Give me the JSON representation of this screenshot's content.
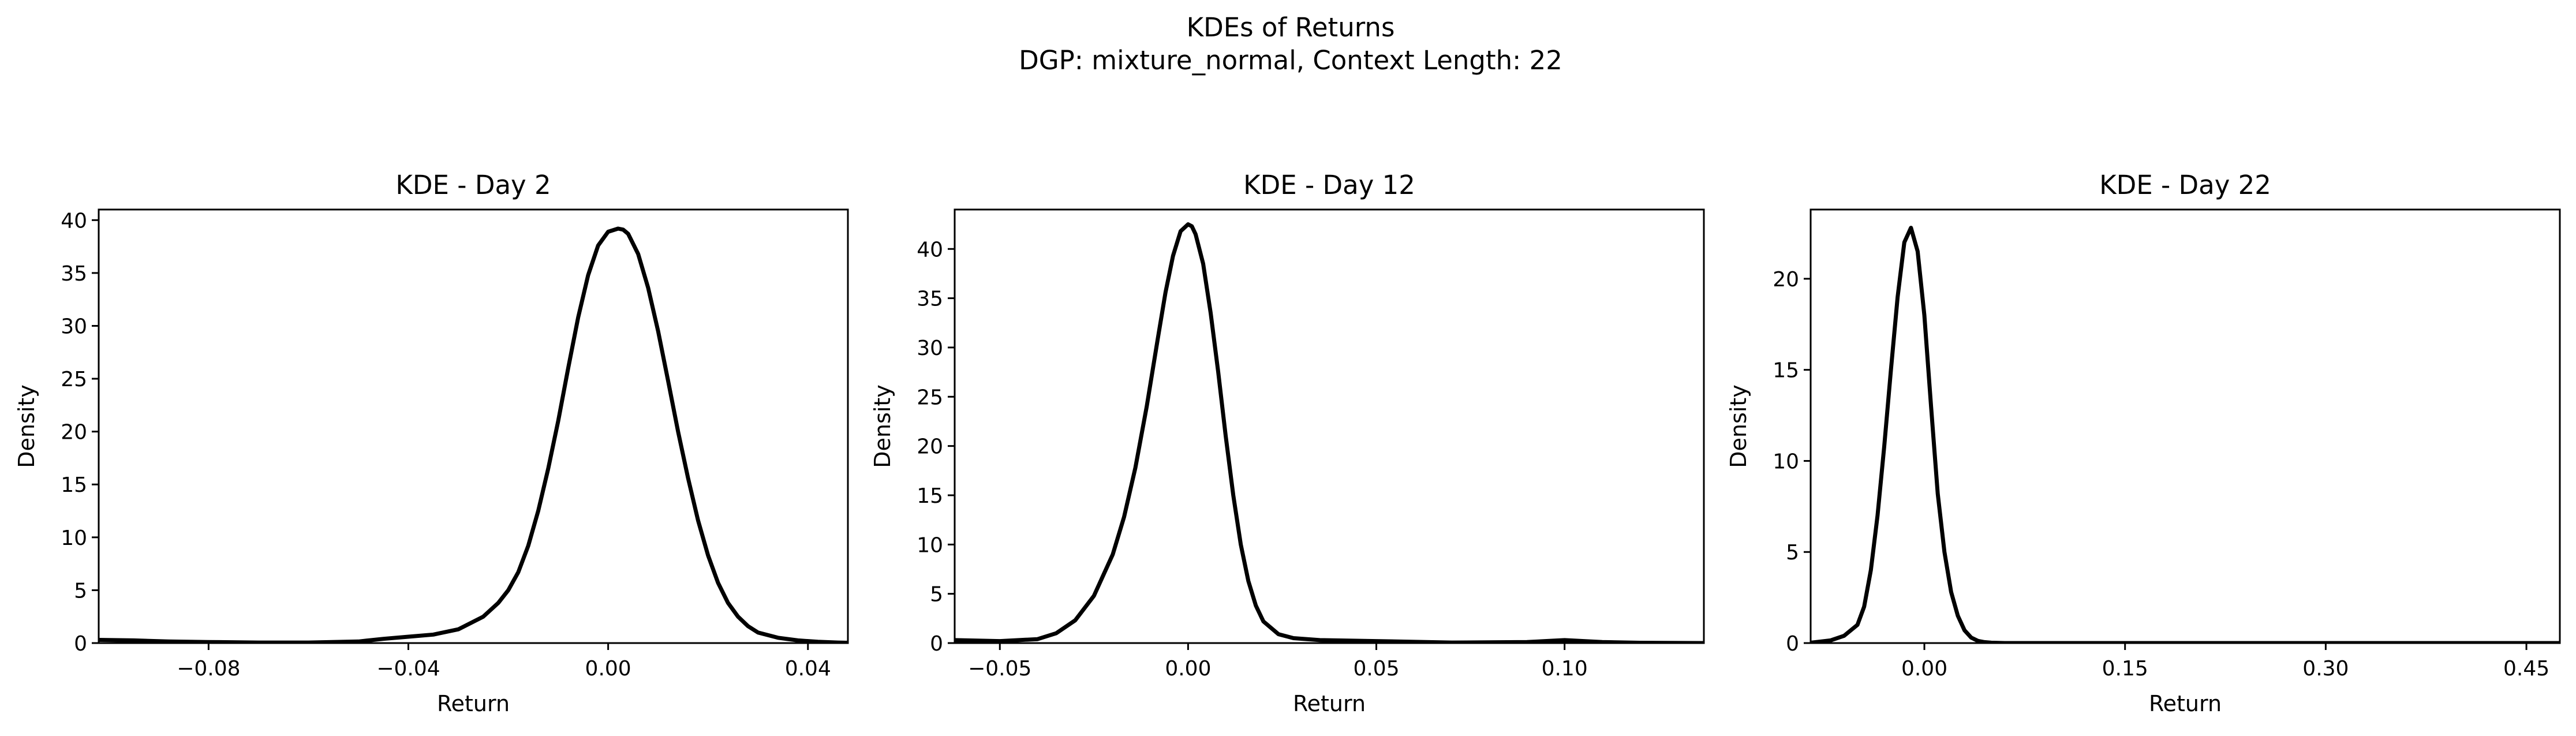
{
  "figure": {
    "title_line1": "KDEs of Returns",
    "title_line2": "DGP: mixture_normal, Context Length: 22"
  },
  "chart_data": [
    {
      "type": "line",
      "title": "KDE - Day 2",
      "xlabel": "Return",
      "ylabel": "Density",
      "xlim": [
        -0.102,
        0.048
      ],
      "ylim": [
        0,
        41
      ],
      "xticks": [
        -0.08,
        -0.04,
        0.0,
        0.04
      ],
      "xtick_labels": [
        "−0.08",
        "−0.04",
        "0.00",
        "0.04"
      ],
      "yticks": [
        0,
        5,
        10,
        15,
        20,
        25,
        30,
        35,
        40
      ],
      "ytick_labels": [
        "0",
        "5",
        "10",
        "15",
        "20",
        "25",
        "30",
        "35",
        "40"
      ],
      "grid": false,
      "series": [
        {
          "color": "#000000",
          "x": [
            -0.102,
            -0.095,
            -0.088,
            -0.08,
            -0.07,
            -0.06,
            -0.05,
            -0.045,
            -0.04,
            -0.035,
            -0.03,
            -0.025,
            -0.022,
            -0.02,
            -0.018,
            -0.016,
            -0.014,
            -0.012,
            -0.01,
            -0.008,
            -0.006,
            -0.004,
            -0.002,
            0.0,
            0.002,
            0.003,
            0.004,
            0.006,
            0.008,
            0.01,
            0.012,
            0.014,
            0.016,
            0.018,
            0.02,
            0.022,
            0.024,
            0.026,
            0.028,
            0.03,
            0.034,
            0.038,
            0.042,
            0.046,
            0.048
          ],
          "y": [
            0.3,
            0.25,
            0.15,
            0.1,
            0.05,
            0.05,
            0.15,
            0.4,
            0.6,
            0.8,
            1.3,
            2.5,
            3.8,
            5.0,
            6.7,
            9.2,
            12.5,
            16.5,
            21.0,
            26.0,
            30.8,
            34.8,
            37.6,
            38.9,
            39.2,
            39.1,
            38.7,
            36.8,
            33.6,
            29.5,
            24.8,
            20.0,
            15.6,
            11.6,
            8.3,
            5.7,
            3.8,
            2.5,
            1.6,
            1.0,
            0.5,
            0.25,
            0.12,
            0.05,
            0.03
          ]
        }
      ]
    },
    {
      "type": "line",
      "title": "KDE - Day 12",
      "xlabel": "Return",
      "ylabel": "Density",
      "xlim": [
        -0.062,
        0.137
      ],
      "ylim": [
        0,
        44
      ],
      "xticks": [
        -0.05,
        0.0,
        0.05,
        0.1
      ],
      "xtick_labels": [
        "−0.05",
        "0.00",
        "0.05",
        "0.10"
      ],
      "yticks": [
        0,
        5,
        10,
        15,
        20,
        25,
        30,
        35,
        40
      ],
      "ytick_labels": [
        "0",
        "5",
        "10",
        "15",
        "20",
        "25",
        "30",
        "35",
        "40"
      ],
      "grid": false,
      "series": [
        {
          "color": "#000000",
          "x": [
            -0.062,
            -0.05,
            -0.04,
            -0.035,
            -0.03,
            -0.025,
            -0.02,
            -0.017,
            -0.014,
            -0.011,
            -0.008,
            -0.006,
            -0.004,
            -0.002,
            0.0,
            0.001,
            0.002,
            0.004,
            0.006,
            0.008,
            0.01,
            0.012,
            0.014,
            0.016,
            0.018,
            0.02,
            0.024,
            0.028,
            0.035,
            0.05,
            0.07,
            0.09,
            0.1,
            0.11,
            0.12,
            0.137
          ],
          "y": [
            0.3,
            0.2,
            0.4,
            1.0,
            2.3,
            4.8,
            9.0,
            12.8,
            17.8,
            24.0,
            31.0,
            35.6,
            39.3,
            41.8,
            42.5,
            42.3,
            41.5,
            38.5,
            33.5,
            27.5,
            21.0,
            15.0,
            10.0,
            6.3,
            3.8,
            2.2,
            0.9,
            0.5,
            0.3,
            0.2,
            0.05,
            0.1,
            0.3,
            0.1,
            0.03,
            0.0
          ]
        }
      ]
    },
    {
      "type": "line",
      "title": "KDE - Day 22",
      "xlabel": "Return",
      "ylabel": "Density",
      "xlim": [
        -0.085,
        0.475
      ],
      "ylim": [
        0,
        23.8
      ],
      "xticks": [
        0.0,
        0.15,
        0.3,
        0.45
      ],
      "xtick_labels": [
        "0.00",
        "0.15",
        "0.30",
        "0.45"
      ],
      "yticks": [
        0,
        5,
        10,
        15,
        20
      ],
      "ytick_labels": [
        "0",
        "5",
        "10",
        "15",
        "20"
      ],
      "grid": false,
      "series": [
        {
          "color": "#000000",
          "x": [
            -0.085,
            -0.07,
            -0.06,
            -0.05,
            -0.045,
            -0.04,
            -0.035,
            -0.03,
            -0.025,
            -0.02,
            -0.015,
            -0.01,
            -0.005,
            0.0,
            0.005,
            0.01,
            0.015,
            0.02,
            0.025,
            0.03,
            0.035,
            0.04,
            0.045,
            0.05,
            0.06,
            0.08,
            0.2,
            0.35,
            0.475
          ],
          "y": [
            0.02,
            0.15,
            0.4,
            1.0,
            2.0,
            4.0,
            7.0,
            10.8,
            15.0,
            19.0,
            22.0,
            22.8,
            21.5,
            18.0,
            13.0,
            8.2,
            5.0,
            2.8,
            1.5,
            0.7,
            0.3,
            0.12,
            0.05,
            0.02,
            0.0,
            0.0,
            0.0,
            0.0,
            0.0
          ]
        }
      ]
    }
  ]
}
